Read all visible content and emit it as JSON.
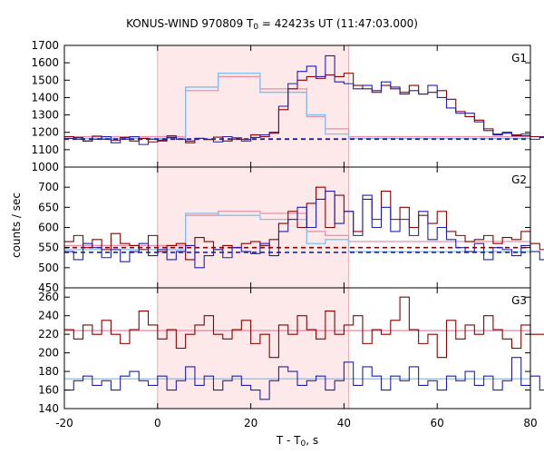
{
  "title_prefix": "KONUS-WIND 970809 T",
  "title_sub": "0",
  "title_suffix": " = 42423s UT (11:47:03.000)",
  "ylabel": "counts / sec",
  "xlabel_prefix": "T - T",
  "xlabel_sub": "0",
  "xlabel_suffix": ", s",
  "colors": {
    "red_series": "#8b0000",
    "blue_series": "#2020b0",
    "red_model": "#e890a8",
    "blue_model": "#80c0f0",
    "red_background": "#8b0000",
    "blue_background": "#2020b0",
    "highlight": "#fde8ea"
  },
  "chart_data": {
    "type": "line",
    "xlim": [
      -20,
      80
    ],
    "xticks": [
      -20,
      0,
      20,
      40,
      60,
      80
    ],
    "highlight_interval": [
      0,
      41
    ],
    "panels": [
      {
        "name": "G1",
        "ylim": [
          1000,
          1700
        ],
        "yticks": [
          1000,
          1100,
          1200,
          1300,
          1400,
          1500,
          1600,
          1700
        ],
        "background_levels": [
          1160,
          1162
        ],
        "series": [
          {
            "color": "red",
            "step": 2,
            "x0": -20,
            "values": [
              1175,
              1160,
              1150,
              1178,
              1160,
              1155,
              1170,
              1150,
              1165,
              1145,
              1155,
              1170,
              1160,
              1140,
              1165,
              1158,
              1172,
              1150,
              1168,
              1160,
              1185,
              1175,
              1195,
              1330,
              1450,
              1500,
              1520,
              1510,
              1530,
              1520,
              1540,
              1470,
              1450,
              1440,
              1470,
              1450,
              1430,
              1470,
              1420,
              1430,
              1440,
              1390,
              1320,
              1290,
              1270,
              1220,
              1190,
              1200,
              1185,
              1180,
              1175,
              1170,
              1180,
              1165,
              1160,
              1175,
              1170,
              1160,
              1155,
              1180,
              1165,
              1170,
              1160,
              1150,
              1175,
              1160,
              1145,
              1170,
              1165,
              1175,
              1160,
              1155,
              1170,
              1160,
              1150,
              1175,
              1165,
              1160,
              1170,
              1155,
              1165,
              1175,
              1160,
              1170,
              1165,
              1158,
              1175,
              1162,
              1170,
              1165,
              1160,
              1172,
              1168,
              1165,
              1175,
              1160,
              1168,
              1170,
              1165,
              1160
            ]
          },
          {
            "color": "blue",
            "step": 2,
            "x0": -20,
            "values": [
              1165,
              1170,
              1150,
              1160,
              1175,
              1140,
              1160,
              1175,
              1130,
              1160,
              1150,
              1180,
              1160,
              1150,
              1165,
              1160,
              1145,
              1175,
              1160,
              1150,
              1170,
              1185,
              1200,
              1350,
              1480,
              1550,
              1580,
              1520,
              1640,
              1490,
              1480,
              1450,
              1470,
              1430,
              1490,
              1460,
              1420,
              1440,
              1420,
              1470,
              1400,
              1340,
              1310,
              1310,
              1260,
              1210,
              1185,
              1195,
              1180,
              1190,
              1160,
              1175,
              1185,
              1150,
              1170,
              1180,
              1165,
              1150,
              1175,
              1160,
              1140,
              1180,
              1165,
              1150,
              1170,
              1180,
              1160,
              1150,
              1165,
              1175,
              1160,
              1140,
              1170,
              1160,
              1175,
              1150,
              1165,
              1180,
              1160,
              1170,
              1155,
              1165,
              1175,
              1150,
              1170,
              1185,
              1160,
              1165,
              1175,
              1170,
              1160,
              1180,
              1165,
              1150,
              1175,
              1160,
              1170,
              1180,
              1165,
              1160
            ]
          }
        ],
        "models": [
          {
            "color": "red",
            "steps": [
              [
                -20,
                6,
                1175
              ],
              [
                6,
                13,
                1440
              ],
              [
                13,
                22,
                1520
              ],
              [
                22,
                32,
                1450
              ],
              [
                32,
                36,
                1290
              ],
              [
                36,
                41,
                1220
              ],
              [
                41,
                80,
                1175
              ]
            ]
          },
          {
            "color": "blue",
            "steps": [
              [
                -20,
                6,
                1165
              ],
              [
                6,
                13,
                1460
              ],
              [
                13,
                22,
                1540
              ],
              [
                22,
                32,
                1430
              ],
              [
                32,
                36,
                1300
              ],
              [
                36,
                41,
                1190
              ],
              [
                41,
                80,
                1165
              ]
            ]
          }
        ]
      },
      {
        "name": "G2",
        "ylim": [
          450,
          750
        ],
        "yticks": [
          450,
          500,
          550,
          600,
          650,
          700
        ],
        "background_levels": [
          550,
          538
        ],
        "series": [
          {
            "color": "red",
            "step": 2,
            "x0": -20,
            "values": [
              565,
              580,
              550,
              570,
              545,
              585,
              560,
              555,
              545,
              580,
              540,
              555,
              560,
              520,
              575,
              565,
              545,
              555,
              550,
              560,
              565,
              555,
              570,
              610,
              640,
              600,
              660,
              700,
              600,
              680,
              640,
              590,
              670,
              620,
              690,
              620,
              650,
              600,
              630,
              610,
              640,
              590,
              580,
              565,
              570,
              580,
              560,
              575,
              570,
              590,
              560,
              545,
              575,
              580,
              560,
              555,
              570,
              590,
              545,
              560,
              585,
              550,
              575,
              555,
              580,
              570,
              560,
              545,
              565,
              575,
              560,
              585,
              555,
              570,
              565,
              580,
              560,
              545,
              575,
              570,
              590,
              560,
              555,
              570,
              580,
              545,
              575,
              560,
              565,
              570,
              555,
              580,
              560,
              575,
              565,
              570,
              560,
              575,
              560,
              570
            ]
          },
          {
            "color": "blue",
            "step": 2,
            "x0": -20,
            "values": [
              540,
              520,
              560,
              550,
              525,
              545,
              515,
              540,
              560,
              530,
              545,
              520,
              540,
              555,
              500,
              530,
              545,
              525,
              550,
              540,
              535,
              560,
              530,
              590,
              620,
              650,
              600,
              670,
              690,
              610,
              640,
              580,
              680,
              600,
              650,
              590,
              620,
              580,
              640,
              570,
              600,
              570,
              550,
              540,
              560,
              520,
              550,
              545,
              530,
              555,
              540,
              520,
              560,
              535,
              545,
              525,
              540,
              555,
              530,
              545,
              520,
              550,
              540,
              535,
              555,
              520,
              545,
              540,
              560,
              525,
              545,
              520,
              540,
              555,
              530,
              550,
              535,
              520,
              545,
              555,
              540,
              525,
              545,
              530,
              550,
              560,
              525,
              540,
              545,
              520,
              550,
              535,
              540,
              525,
              555,
              540,
              545,
              520,
              540,
              560
            ]
          }
        ],
        "models": [
          {
            "color": "red",
            "steps": [
              [
                -20,
                6,
                555
              ],
              [
                6,
                13,
                630
              ],
              [
                13,
                22,
                640
              ],
              [
                22,
                32,
                635
              ],
              [
                32,
                36,
                590
              ],
              [
                36,
                41,
                580
              ],
              [
                41,
                80,
                565
              ]
            ]
          },
          {
            "color": "blue",
            "steps": [
              [
                -20,
                6,
                545
              ],
              [
                6,
                13,
                635
              ],
              [
                13,
                22,
                630
              ],
              [
                22,
                32,
                620
              ],
              [
                32,
                36,
                560
              ],
              [
                36,
                41,
                570
              ],
              [
                41,
                80,
                540
              ]
            ]
          }
        ]
      },
      {
        "name": "G3",
        "ylim": [
          140,
          270
        ],
        "yticks": [
          140,
          160,
          180,
          200,
          220,
          240,
          260
        ],
        "background_levels": [],
        "series": [
          {
            "color": "red",
            "step": 2,
            "x0": -20,
            "values": [
              225,
              215,
              230,
              220,
              235,
              220,
              210,
              225,
              245,
              230,
              215,
              225,
              205,
              220,
              230,
              240,
              220,
              215,
              225,
              235,
              210,
              220,
              195,
              230,
              220,
              240,
              225,
              215,
              245,
              220,
              230,
              240,
              210,
              225,
              220,
              235,
              260,
              225,
              210,
              220,
              195,
              235,
              215,
              230,
              220,
              240,
              225,
              215,
              205,
              230,
              220,
              220,
              210,
              225,
              215,
              205,
              240,
              225,
              230,
              220,
              210,
              235,
              225,
              215,
              225,
              240,
              220,
              210,
              230,
              215,
              225,
              205,
              235,
              240,
              220,
              225,
              210,
              230,
              215,
              245,
              220,
              255,
              210,
              225,
              230,
              220,
              205,
              235,
              215,
              220,
              230,
              215,
              225,
              210,
              240,
              220,
              215,
              230,
              220,
              225
            ]
          },
          {
            "color": "blue",
            "step": 2,
            "x0": -20,
            "values": [
              160,
              170,
              175,
              165,
              170,
              160,
              175,
              180,
              170,
              165,
              175,
              160,
              170,
              185,
              165,
              175,
              160,
              170,
              175,
              165,
              160,
              150,
              170,
              185,
              180,
              165,
              170,
              175,
              160,
              170,
              190,
              165,
              185,
              175,
              160,
              175,
              170,
              185,
              165,
              170,
              160,
              175,
              170,
              180,
              165,
              175,
              160,
              170,
              195,
              165,
              175,
              160,
              180,
              170,
              165,
              175,
              160,
              170,
              180,
              185,
              160,
              170,
              165,
              175,
              160,
              185,
              170,
              165,
              175,
              160,
              170,
              175,
              165,
              180,
              160,
              170,
              175,
              160,
              165,
              170,
              180,
              175,
              160,
              165,
              170,
              175,
              180,
              160,
              170,
              175,
              165,
              170,
              160,
              175,
              180,
              165,
              170,
              190,
              160,
              175
            ]
          }
        ],
        "models": [
          {
            "color": "red",
            "steps": [
              [
                -20,
                80,
                224
              ]
            ]
          },
          {
            "color": "blue",
            "steps": [
              [
                -20,
                80,
                172
              ]
            ]
          }
        ]
      }
    ]
  }
}
